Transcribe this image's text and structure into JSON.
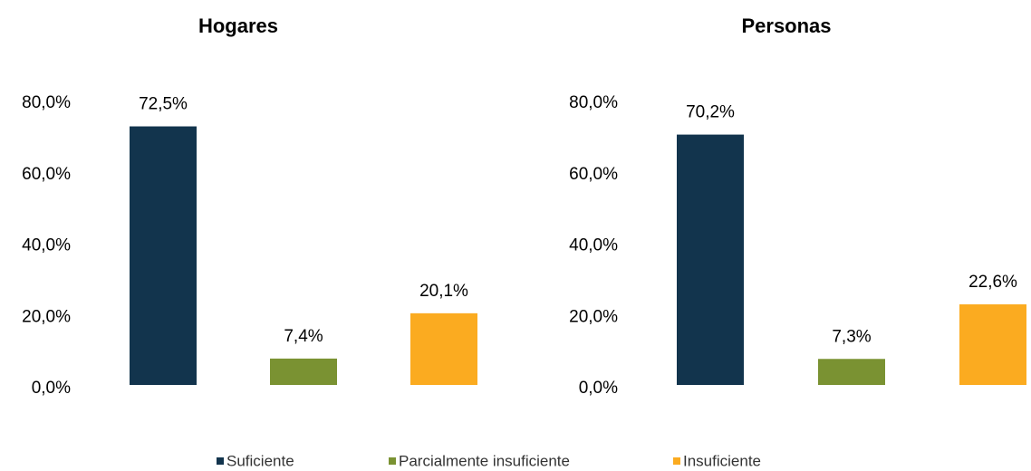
{
  "legend": {
    "series": [
      {
        "name": "Suficiente",
        "color": "#12344d"
      },
      {
        "name": "Parcialmente insuficiente",
        "color": "#7a9232"
      },
      {
        "name": "Insuficiente",
        "color": "#fbab20"
      }
    ]
  },
  "chart_data": [
    {
      "type": "bar",
      "title": "Hogares",
      "values": [
        72.5,
        7.4,
        20.1
      ],
      "value_labels": [
        "72,5%",
        "7,4%",
        "20,1%"
      ],
      "ylim": [
        0,
        80
      ],
      "yticks": [
        {
          "value": 0,
          "label": "0,0%"
        },
        {
          "value": 20,
          "label": "20,0%"
        },
        {
          "value": 40,
          "label": "40,0%"
        },
        {
          "value": 60,
          "label": "60,0%"
        },
        {
          "value": 80,
          "label": "80,0%"
        }
      ]
    },
    {
      "type": "bar",
      "title": "Personas",
      "values": [
        70.2,
        7.3,
        22.6
      ],
      "value_labels": [
        "70,2%",
        "7,3%",
        "22,6%"
      ],
      "ylim": [
        0,
        80
      ],
      "yticks": [
        {
          "value": 0,
          "label": "0,0%"
        },
        {
          "value": 20,
          "label": "20,0%"
        },
        {
          "value": 40,
          "label": "40,0%"
        },
        {
          "value": 60,
          "label": "60,0%"
        },
        {
          "value": 80,
          "label": "80,0%"
        }
      ]
    }
  ]
}
